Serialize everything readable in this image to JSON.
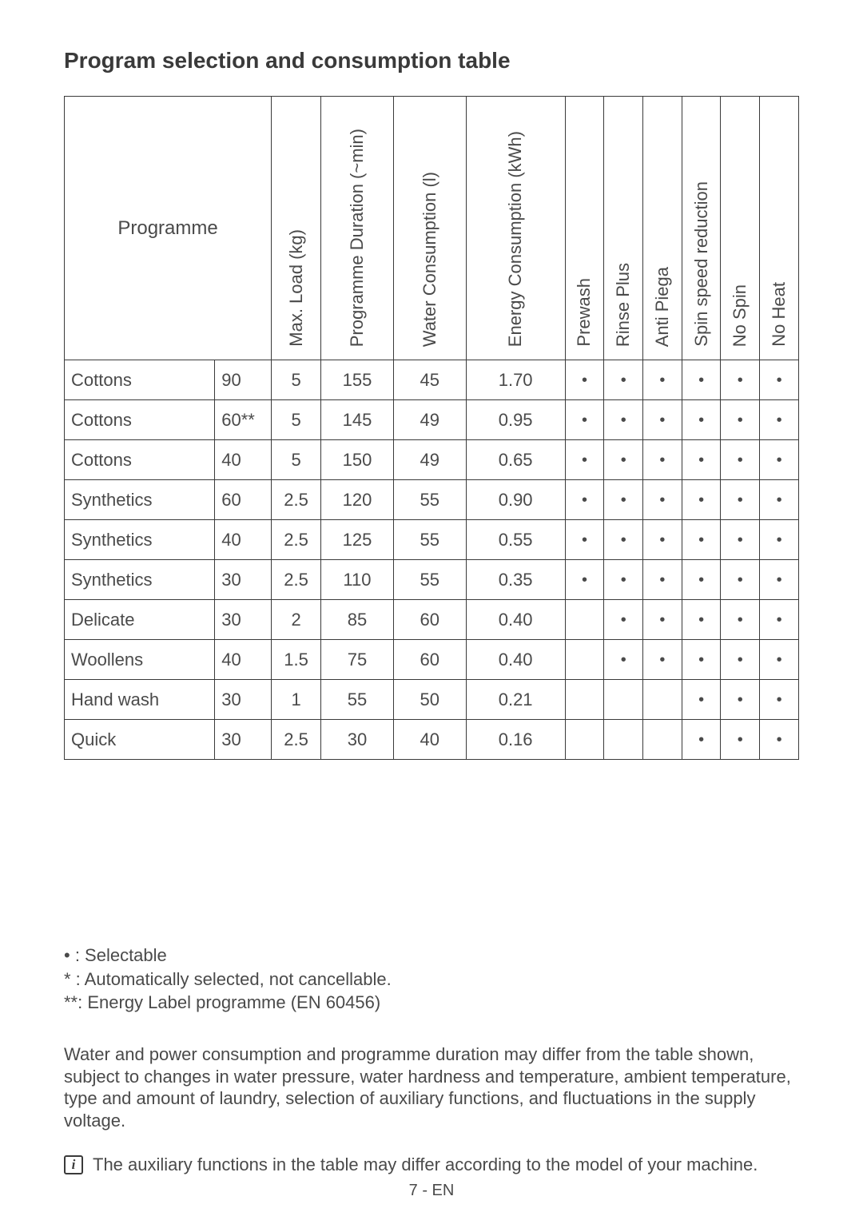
{
  "title": "Program selection and consumption table",
  "columns": {
    "programme": "Programme",
    "max_load": "Max. Load (kg)",
    "duration": "Programme Duration (~min)",
    "water": "Water Consumption (l)",
    "energy": "Energy Consumption (kWh)",
    "prewash": "Prewash",
    "rinse_plus": "Rinse Plus",
    "anti_piega": "Anti Piega",
    "spin_reduction": "Spin speed reduction",
    "no_spin": "No Spin",
    "no_heat": "No Heat"
  },
  "col_widths": {
    "name": 170,
    "temp": 64,
    "max_load": 56,
    "duration": 82,
    "water": 82,
    "energy": 112,
    "aux": 44
  },
  "rows": [
    {
      "name": "Cottons",
      "temp": "90",
      "max_load": "5",
      "duration": "155",
      "water": "45",
      "energy": "1.70",
      "prewash": "•",
      "rinse_plus": "•",
      "anti_piega": "•",
      "spin_reduction": "•",
      "no_spin": "•",
      "no_heat": "•"
    },
    {
      "name": "Cottons",
      "temp": "60**",
      "max_load": "5",
      "duration": "145",
      "water": "49",
      "energy": "0.95",
      "prewash": "•",
      "rinse_plus": "•",
      "anti_piega": "•",
      "spin_reduction": "•",
      "no_spin": "•",
      "no_heat": "•"
    },
    {
      "name": "Cottons",
      "temp": "40",
      "max_load": "5",
      "duration": "150",
      "water": "49",
      "energy": "0.65",
      "prewash": "•",
      "rinse_plus": "•",
      "anti_piega": "•",
      "spin_reduction": "•",
      "no_spin": "•",
      "no_heat": "•"
    },
    {
      "name": "Synthetics",
      "temp": "60",
      "max_load": "2.5",
      "duration": "120",
      "water": "55",
      "energy": "0.90",
      "prewash": "•",
      "rinse_plus": "•",
      "anti_piega": "•",
      "spin_reduction": "•",
      "no_spin": "•",
      "no_heat": "•"
    },
    {
      "name": "Synthetics",
      "temp": "40",
      "max_load": "2.5",
      "duration": "125",
      "water": "55",
      "energy": "0.55",
      "prewash": "•",
      "rinse_plus": "•",
      "anti_piega": "•",
      "spin_reduction": "•",
      "no_spin": "•",
      "no_heat": "•"
    },
    {
      "name": "Synthetics",
      "temp": "30",
      "max_load": "2.5",
      "duration": "110",
      "water": "55",
      "energy": "0.35",
      "prewash": "•",
      "rinse_plus": "•",
      "anti_piega": "•",
      "spin_reduction": "•",
      "no_spin": "•",
      "no_heat": "•"
    },
    {
      "name": "Delicate",
      "temp": "30",
      "max_load": "2",
      "duration": "85",
      "water": "60",
      "energy": "0.40",
      "prewash": "",
      "rinse_plus": "•",
      "anti_piega": "•",
      "spin_reduction": "•",
      "no_spin": "•",
      "no_heat": "•"
    },
    {
      "name": "Woollens",
      "temp": "40",
      "max_load": "1.5",
      "duration": "75",
      "water": "60",
      "energy": "0.40",
      "prewash": "",
      "rinse_plus": "•",
      "anti_piega": "•",
      "spin_reduction": "•",
      "no_spin": "•",
      "no_heat": "•"
    },
    {
      "name": "Hand wash",
      "temp": "30",
      "max_load": "1",
      "duration": "55",
      "water": "50",
      "energy": "0.21",
      "prewash": "",
      "rinse_plus": "",
      "anti_piega": "",
      "spin_reduction": "•",
      "no_spin": "•",
      "no_heat": "•"
    },
    {
      "name": "Quick",
      "temp": "30",
      "max_load": "2.5",
      "duration": "30",
      "water": "40",
      "energy": "0.16",
      "prewash": "",
      "rinse_plus": "",
      "anti_piega": "",
      "spin_reduction": "•",
      "no_spin": "•",
      "no_heat": "•"
    }
  ],
  "legend": {
    "l1": "• : Selectable",
    "l2": "* : Automatically selected, not cancellable.",
    "l3": "**: Energy Label programme (EN 60456)"
  },
  "note": "Water and power consumption and programme duration may differ from the table shown, subject to changes in water pressure, water hardness and temperature, ambient temperature, type and amount of laundry, selection of auxiliary functions, and fluctuations in the supply voltage.",
  "info_note": "The auxiliary functions in the table may differ according to the model of your machine.",
  "page_num": "7 - EN",
  "colors": {
    "text": "#4a4a4a",
    "border": "#3a3a3a",
    "bg": "#ffffff"
  }
}
